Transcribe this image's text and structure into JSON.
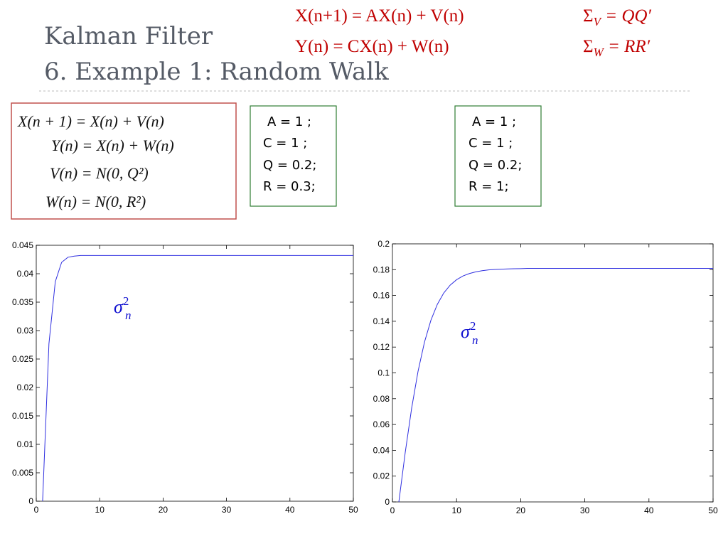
{
  "header": {
    "title": "Kalman Filter",
    "subtitle": "6. Example 1: Random Walk"
  },
  "model": {
    "line1": "X(n+1) = AX(n) + V(n)",
    "line2": "Y(n) = CX(n) + W(n)",
    "cov1": {
      "symbol": "Σ",
      "sub": "V",
      "rhs": " = QQ′"
    },
    "cov2": {
      "symbol": "Σ",
      "sub": "W",
      "rhs": " = RR′"
    }
  },
  "equations": [
    "X(n + 1) = X(n) + V(n)",
    "Y(n) = X(n) + W(n)",
    "V(n) = N(0, Q²)",
    "W(n) = N(0, R²)"
  ],
  "params_left": [
    "A = 1 ;",
    "C = 1 ;",
    "Q = 0.2;",
    "R = 0.3;"
  ],
  "params_right": [
    "A = 1 ;",
    "C = 1 ;",
    "Q = 0.2;",
    "R = 1;"
  ],
  "chart_data": [
    {
      "type": "line",
      "annotation": {
        "base": "σ",
        "sub": "n",
        "sup": "2"
      },
      "x": [
        1,
        2,
        3,
        4,
        5,
        6,
        7,
        8,
        9,
        10,
        11,
        12,
        13,
        14,
        15,
        16,
        17,
        18,
        19,
        20,
        21,
        22,
        23,
        24,
        25,
        26,
        27,
        28,
        29,
        30,
        31,
        32,
        33,
        34,
        35,
        36,
        37,
        38,
        39,
        40,
        41,
        42,
        43,
        44,
        45,
        46,
        47,
        48,
        49,
        50
      ],
      "series": [
        {
          "color": "#3030e0",
          "values": [
            0,
            0.0277,
            0.0386,
            0.042,
            0.0429,
            0.0431,
            0.0432,
            0.0432,
            0.0432,
            0.0432,
            0.0432,
            0.0432,
            0.0432,
            0.0432,
            0.0432,
            0.0432,
            0.0432,
            0.0432,
            0.0432,
            0.0432,
            0.0432,
            0.0432,
            0.0432,
            0.0432,
            0.0432,
            0.0432,
            0.0432,
            0.0432,
            0.0432,
            0.0432,
            0.0432,
            0.0432,
            0.0432,
            0.0432,
            0.0432,
            0.0432,
            0.0432,
            0.0432,
            0.0432,
            0.0432,
            0.0432,
            0.0432,
            0.0432,
            0.0432,
            0.0432,
            0.0432,
            0.0432,
            0.0432,
            0.0432,
            0.0432
          ]
        }
      ],
      "xlim": [
        0,
        50
      ],
      "xticks": [
        0,
        10,
        20,
        30,
        40,
        50
      ],
      "ylim": [
        0,
        0.045
      ],
      "yticks": [
        0,
        0.005,
        0.01,
        0.015,
        0.02,
        0.025,
        0.03,
        0.035,
        0.04,
        0.045
      ]
    },
    {
      "type": "line",
      "annotation": {
        "base": "σ",
        "sub": "n",
        "sup": "2"
      },
      "x": [
        1,
        2,
        3,
        4,
        5,
        6,
        7,
        8,
        9,
        10,
        11,
        12,
        13,
        14,
        15,
        16,
        17,
        18,
        19,
        20,
        21,
        22,
        23,
        24,
        25,
        26,
        27,
        28,
        29,
        30,
        31,
        32,
        33,
        34,
        35,
        36,
        37,
        38,
        39,
        40,
        41,
        42,
        43,
        44,
        45,
        46,
        47,
        48,
        49,
        50
      ],
      "series": [
        {
          "color": "#3030e0",
          "values": [
            0,
            0.0385,
            0.0728,
            0.1014,
            0.1239,
            0.1408,
            0.1531,
            0.1619,
            0.168,
            0.1722,
            0.1751,
            0.177,
            0.1783,
            0.1792,
            0.1798,
            0.1802,
            0.1804,
            0.1806,
            0.1807,
            0.1808,
            0.181,
            0.181,
            0.181,
            0.181,
            0.181,
            0.181,
            0.181,
            0.181,
            0.181,
            0.181,
            0.181,
            0.181,
            0.181,
            0.181,
            0.181,
            0.181,
            0.181,
            0.181,
            0.181,
            0.181,
            0.181,
            0.181,
            0.181,
            0.181,
            0.181,
            0.181,
            0.181,
            0.181,
            0.181,
            0.181
          ]
        }
      ],
      "xlim": [
        0,
        50
      ],
      "xticks": [
        0,
        10,
        20,
        30,
        40,
        50
      ],
      "ylim": [
        0,
        0.2
      ],
      "yticks": [
        0,
        0.02,
        0.04,
        0.06,
        0.08,
        0.1,
        0.12,
        0.14,
        0.16,
        0.18,
        0.2
      ]
    }
  ]
}
